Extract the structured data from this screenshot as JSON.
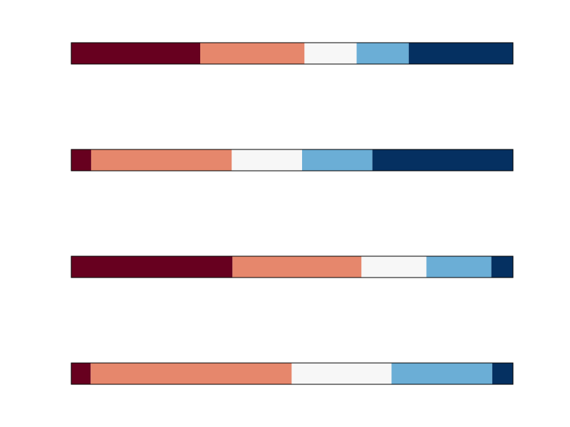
{
  "chart_data": {
    "type": "bar",
    "orientation": "horizontal",
    "stacked": true,
    "normalized": true,
    "title": "",
    "xlabel": "",
    "ylabel": "",
    "axes_visible": false,
    "grid": false,
    "legend": "none",
    "colors": [
      "#67001f",
      "#e6876c",
      "#f7f7f7",
      "#6baed6",
      "#053061"
    ],
    "bar_border_color": "#000000",
    "rows": [
      [
        0.292,
        0.236,
        0.118,
        0.118,
        0.236
      ],
      [
        0.045,
        0.318,
        0.159,
        0.159,
        0.318
      ],
      [
        0.365,
        0.292,
        0.147,
        0.147,
        0.049
      ],
      [
        0.044,
        0.455,
        0.226,
        0.228,
        0.047
      ]
    ]
  }
}
